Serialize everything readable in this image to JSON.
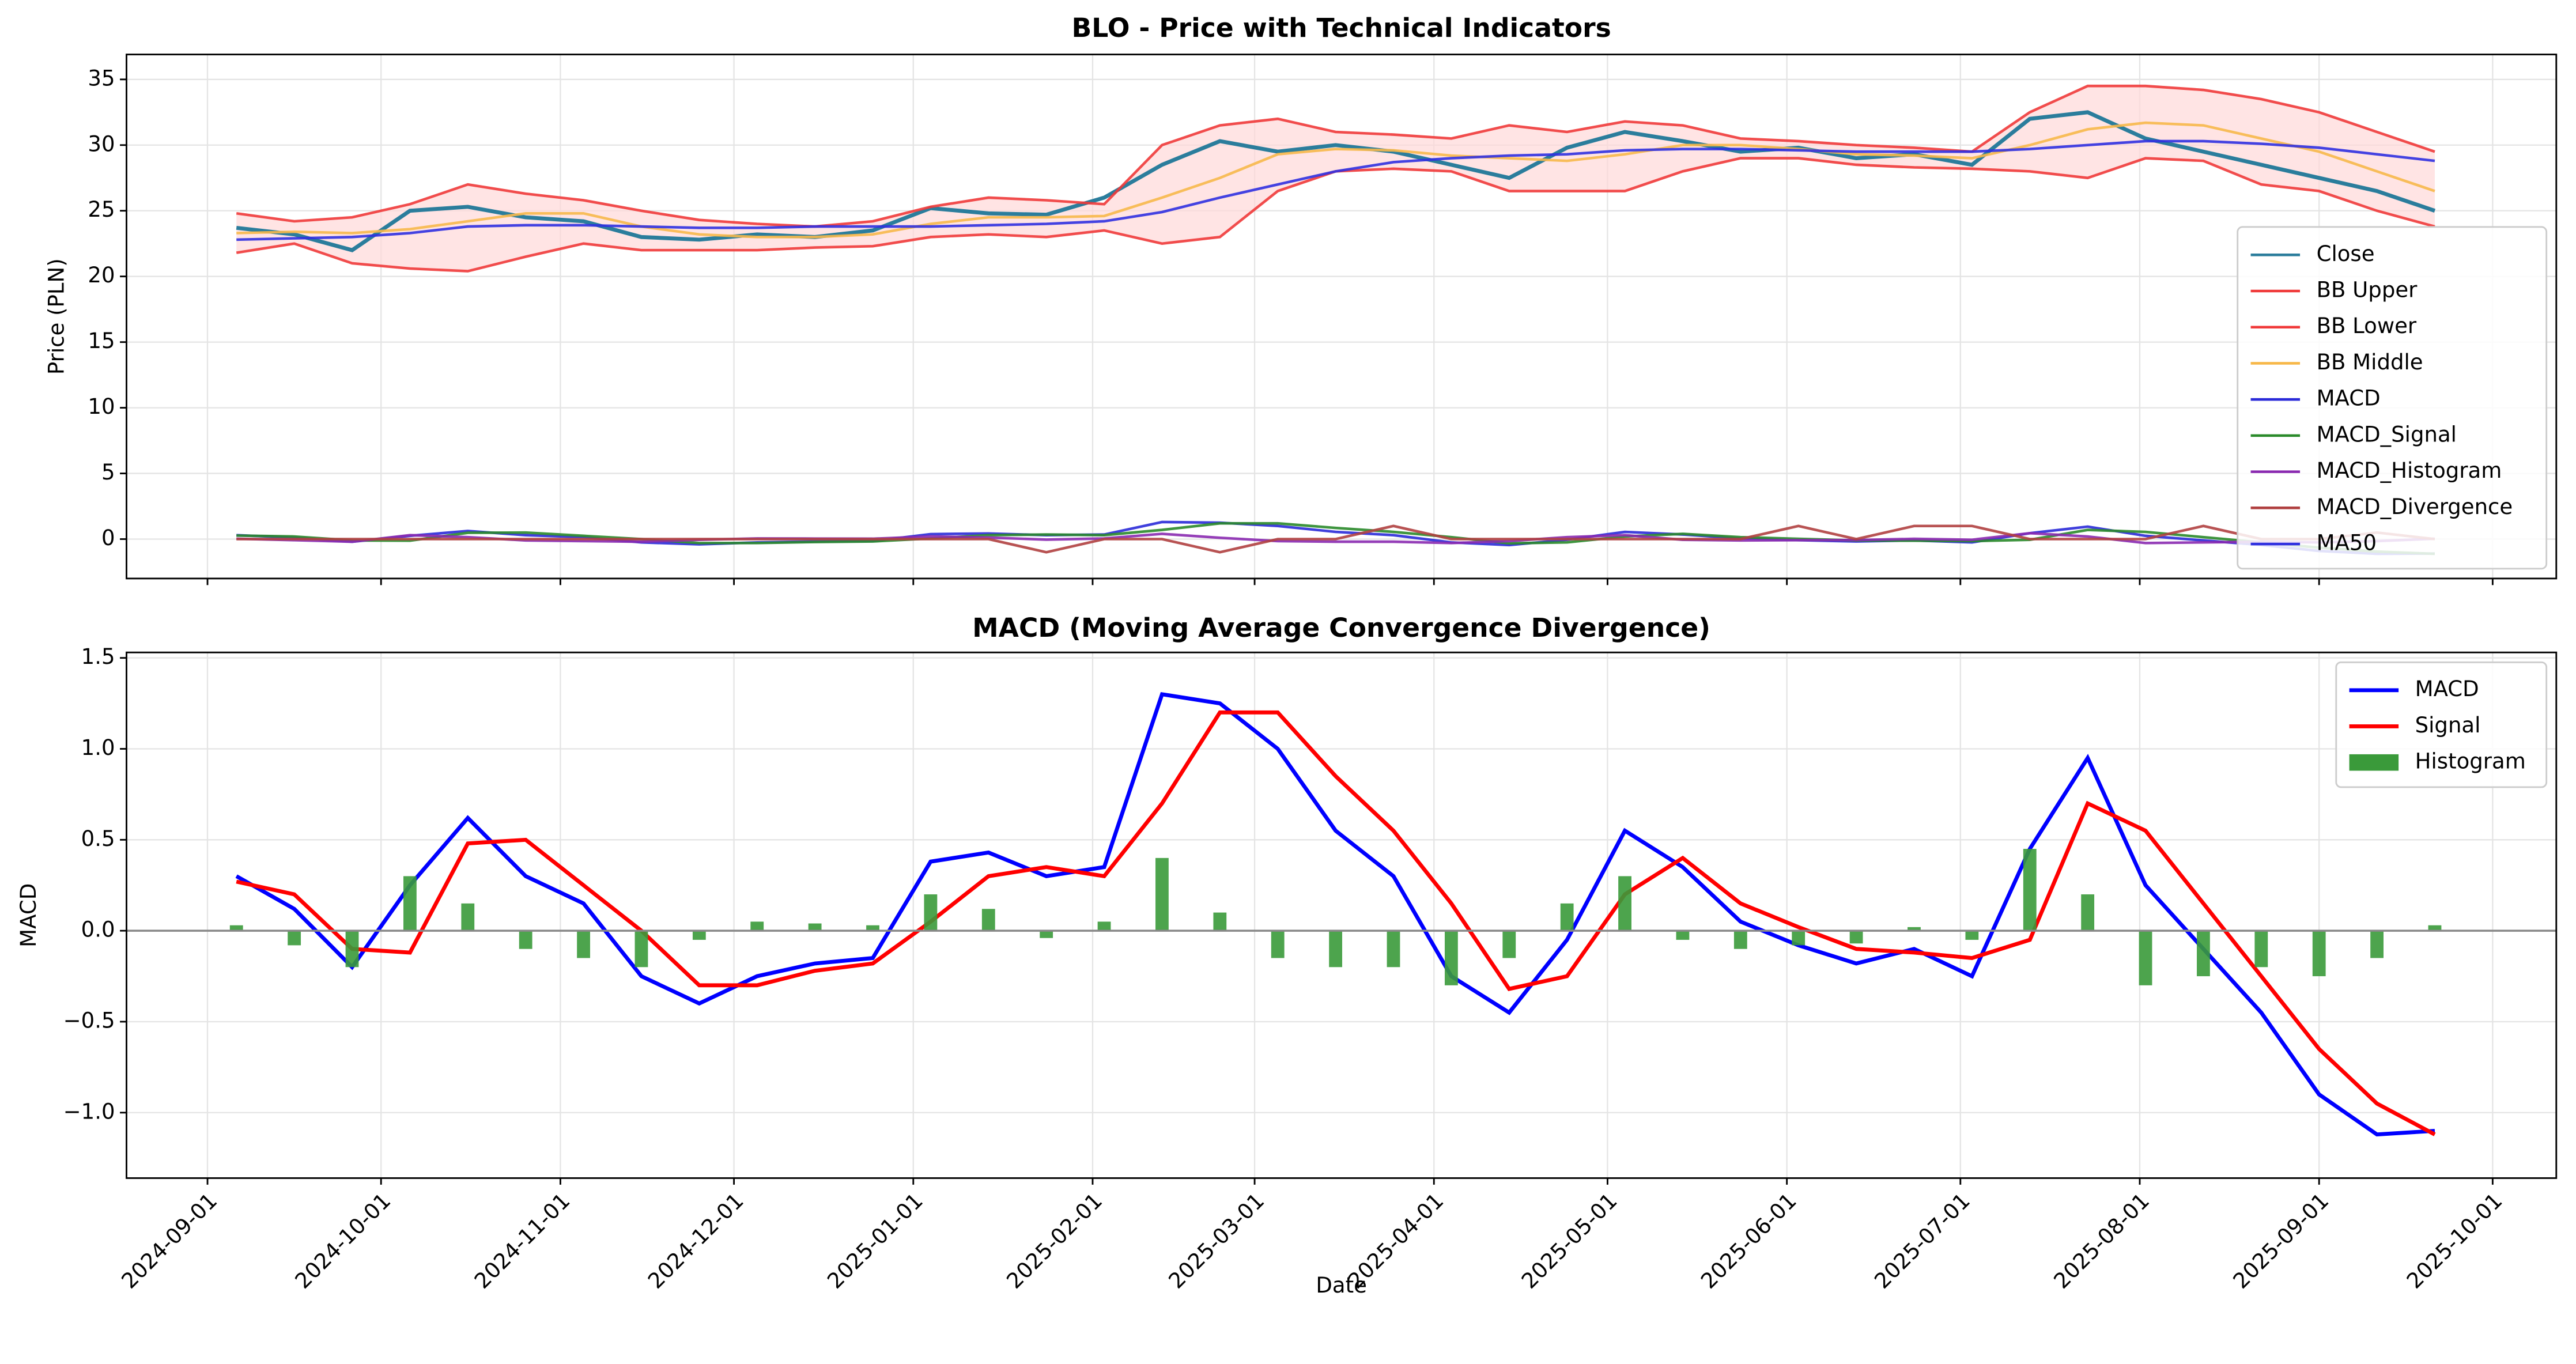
{
  "chart_data": [
    {
      "type": "line",
      "title": "BLO - Price with Technical Indicators",
      "y_label": "Price (PLN)",
      "x": [
        "2024-09-06",
        "2024-09-16",
        "2024-09-26",
        "2024-10-06",
        "2024-10-16",
        "2024-10-26",
        "2024-11-05",
        "2024-11-15",
        "2024-11-25",
        "2024-12-05",
        "2024-12-15",
        "2024-12-25",
        "2025-01-04",
        "2025-01-14",
        "2025-01-24",
        "2025-02-03",
        "2025-02-13",
        "2025-02-23",
        "2025-03-05",
        "2025-03-15",
        "2025-03-25",
        "2025-04-04",
        "2025-04-14",
        "2025-04-24",
        "2025-05-04",
        "2025-05-14",
        "2025-05-24",
        "2025-06-03",
        "2025-06-13",
        "2025-06-23",
        "2025-07-03",
        "2025-07-13",
        "2025-07-23",
        "2025-08-02",
        "2025-08-12",
        "2025-08-22",
        "2025-09-01",
        "2025-09-11",
        "2025-09-21"
      ],
      "series": [
        {
          "name": "Close",
          "color": "#2b7d9c",
          "values": [
            23.7,
            23.2,
            22.0,
            25.0,
            25.3,
            24.5,
            24.2,
            23.0,
            22.8,
            23.2,
            23.0,
            23.5,
            25.2,
            24.8,
            24.7,
            26.0,
            28.5,
            30.3,
            29.5,
            30.0,
            29.5,
            28.5,
            27.5,
            29.8,
            31.0,
            30.3,
            29.5,
            29.8,
            29.0,
            29.3,
            28.5,
            32.0,
            32.5,
            30.5,
            29.5,
            28.5,
            27.5,
            26.5,
            25.0
          ]
        },
        {
          "name": "BB Upper",
          "color": "#f03a3a",
          "values": [
            24.8,
            24.2,
            24.5,
            25.5,
            27.0,
            26.3,
            25.8,
            25.0,
            24.3,
            24.0,
            23.8,
            24.2,
            25.3,
            26.0,
            25.8,
            25.5,
            30.0,
            31.5,
            32.0,
            31.0,
            30.8,
            30.5,
            31.5,
            31.0,
            31.8,
            31.5,
            30.5,
            30.3,
            30.0,
            29.8,
            29.5,
            32.5,
            34.5,
            34.5,
            34.2,
            33.5,
            32.5,
            31.0,
            29.5
          ]
        },
        {
          "name": "BB Lower",
          "color": "#f03a3a",
          "values": [
            21.8,
            22.5,
            21.0,
            20.6,
            20.4,
            21.5,
            22.5,
            22.0,
            22.0,
            22.0,
            22.2,
            22.3,
            23.0,
            23.2,
            23.0,
            23.5,
            22.5,
            23.0,
            26.5,
            28.0,
            28.2,
            28.0,
            26.5,
            26.5,
            26.5,
            28.0,
            29.0,
            29.0,
            28.5,
            28.3,
            28.2,
            28.0,
            27.5,
            29.0,
            28.8,
            27.0,
            26.5,
            25.0,
            23.8
          ]
        },
        {
          "name": "BB Middle",
          "color": "#f7b84a",
          "values": [
            23.3,
            23.4,
            23.3,
            23.6,
            24.2,
            24.8,
            24.8,
            23.8,
            23.2,
            23.0,
            23.0,
            23.2,
            24.0,
            24.5,
            24.5,
            24.6,
            26.0,
            27.5,
            29.3,
            29.7,
            29.6,
            29.2,
            29.0,
            28.8,
            29.3,
            30.0,
            30.0,
            29.7,
            29.3,
            29.2,
            29.0,
            30.0,
            31.2,
            31.7,
            31.5,
            30.5,
            29.5,
            28.0,
            26.5
          ]
        },
        {
          "name": "MACD",
          "color": "#2a2ad8",
          "values": [
            0.3,
            0.12,
            -0.2,
            0.25,
            0.62,
            0.3,
            0.15,
            -0.25,
            -0.4,
            -0.25,
            -0.18,
            -0.15,
            0.38,
            0.43,
            0.3,
            0.35,
            1.3,
            1.25,
            1.0,
            0.55,
            0.3,
            -0.25,
            -0.45,
            -0.05,
            0.55,
            0.35,
            0.05,
            -0.08,
            -0.18,
            -0.1,
            -0.25,
            0.45,
            0.95,
            0.25,
            -0.1,
            -0.45,
            -0.9,
            -1.12,
            -1.1
          ]
        },
        {
          "name": "MACD_Signal",
          "color": "#2a8a2a",
          "values": [
            0.27,
            0.2,
            -0.1,
            -0.12,
            0.48,
            0.5,
            0.25,
            0.0,
            -0.3,
            -0.3,
            -0.22,
            -0.18,
            0.05,
            0.3,
            0.35,
            0.3,
            0.7,
            1.2,
            1.2,
            0.85,
            0.55,
            0.15,
            -0.32,
            -0.25,
            0.2,
            0.4,
            0.15,
            0.02,
            -0.1,
            -0.12,
            -0.15,
            -0.05,
            0.7,
            0.55,
            0.15,
            -0.25,
            -0.65,
            -0.95,
            -1.12
          ]
        },
        {
          "name": "MACD_Histogram",
          "color": "#8a2ab0",
          "values": [
            0.03,
            -0.08,
            -0.2,
            0.3,
            0.15,
            -0.1,
            -0.15,
            -0.2,
            -0.05,
            0.05,
            0.04,
            0.03,
            0.2,
            0.12,
            -0.04,
            0.05,
            0.4,
            0.1,
            -0.15,
            -0.2,
            -0.2,
            -0.3,
            -0.15,
            0.15,
            0.3,
            -0.05,
            -0.1,
            -0.08,
            -0.07,
            0.02,
            -0.05,
            0.45,
            0.2,
            -0.3,
            -0.25,
            -0.2,
            -0.25,
            -0.15,
            0.03
          ]
        },
        {
          "name": "MACD_Divergence",
          "color": "#b04040",
          "values": [
            0,
            0,
            0,
            0,
            0,
            0,
            0,
            0,
            0,
            0,
            0,
            0,
            0,
            0,
            -1,
            0,
            0,
            -1,
            0,
            0,
            1,
            0,
            0,
            0,
            0,
            0,
            0,
            1,
            0,
            1,
            1,
            0,
            0,
            0,
            1,
            0,
            0,
            0.5,
            0
          ]
        },
        {
          "name": "MA50",
          "color": "#3030e0",
          "values": [
            22.8,
            22.9,
            23.0,
            23.3,
            23.8,
            23.9,
            23.9,
            23.8,
            23.7,
            23.7,
            23.8,
            23.8,
            23.8,
            23.9,
            24.0,
            24.2,
            24.9,
            26.0,
            27.0,
            28.0,
            28.7,
            29.0,
            29.2,
            29.3,
            29.6,
            29.7,
            29.7,
            29.6,
            29.5,
            29.5,
            29.5,
            29.7,
            30.0,
            30.3,
            30.3,
            30.1,
            29.8,
            29.3,
            28.8
          ]
        }
      ],
      "band_color": "#ffd9d9",
      "xlim": [
        "2024-08-18",
        "2025-10-12"
      ],
      "xticks": [
        "2024-09-01",
        "2024-10-01",
        "2024-11-01",
        "2024-12-01",
        "2025-01-01",
        "2025-02-01",
        "2025-03-01",
        "2025-04-01",
        "2025-05-01",
        "2025-06-01",
        "2025-07-01",
        "2025-08-01",
        "2025-09-01",
        "2025-10-01"
      ],
      "ylim": [
        -3,
        36.9
      ],
      "yticks": [
        0,
        5,
        10,
        15,
        20,
        25,
        30,
        35
      ],
      "grid": true,
      "legend": "lower right"
    },
    {
      "type": "line",
      "title": "MACD (Moving Average Convergence Divergence)",
      "x_label": "Date",
      "y_label": "MACD",
      "x": [
        "2024-09-06",
        "2024-09-16",
        "2024-09-26",
        "2024-10-06",
        "2024-10-16",
        "2024-10-26",
        "2024-11-05",
        "2024-11-15",
        "2024-11-25",
        "2024-12-05",
        "2024-12-15",
        "2024-12-25",
        "2025-01-04",
        "2025-01-14",
        "2025-01-24",
        "2025-02-03",
        "2025-02-13",
        "2025-02-23",
        "2025-03-05",
        "2025-03-15",
        "2025-03-25",
        "2025-04-04",
        "2025-04-14",
        "2025-04-24",
        "2025-05-04",
        "2025-05-14",
        "2025-05-24",
        "2025-06-03",
        "2025-06-13",
        "2025-06-23",
        "2025-07-03",
        "2025-07-13",
        "2025-07-23",
        "2025-08-02",
        "2025-08-12",
        "2025-08-22",
        "2025-09-01",
        "2025-09-11",
        "2025-09-21"
      ],
      "series": [
        {
          "name": "MACD",
          "color": "#0000ff",
          "values": [
            0.3,
            0.12,
            -0.2,
            0.25,
            0.62,
            0.3,
            0.15,
            -0.25,
            -0.4,
            -0.25,
            -0.18,
            -0.15,
            0.38,
            0.43,
            0.3,
            0.35,
            1.3,
            1.25,
            1.0,
            0.55,
            0.3,
            -0.25,
            -0.45,
            -0.05,
            0.55,
            0.35,
            0.05,
            -0.08,
            -0.18,
            -0.1,
            -0.25,
            0.45,
            0.95,
            0.25,
            -0.1,
            -0.45,
            -0.9,
            -1.12,
            -1.1
          ]
        },
        {
          "name": "Signal",
          "color": "#ff0000",
          "values": [
            0.27,
            0.2,
            -0.1,
            -0.12,
            0.48,
            0.5,
            0.25,
            0.0,
            -0.3,
            -0.3,
            -0.22,
            -0.18,
            0.05,
            0.3,
            0.35,
            0.3,
            0.7,
            1.2,
            1.2,
            0.85,
            0.55,
            0.15,
            -0.32,
            -0.25,
            0.2,
            0.4,
            0.15,
            0.02,
            -0.1,
            -0.12,
            -0.15,
            -0.05,
            0.7,
            0.55,
            0.15,
            -0.25,
            -0.65,
            -0.95,
            -1.12
          ]
        },
        {
          "name": "Histogram",
          "color": "#3a9a3a",
          "type": "bar",
          "values": [
            0.03,
            -0.08,
            -0.2,
            0.3,
            0.15,
            -0.1,
            -0.15,
            -0.2,
            -0.05,
            0.05,
            0.04,
            0.03,
            0.2,
            0.12,
            -0.04,
            0.05,
            0.4,
            0.1,
            -0.15,
            -0.2,
            -0.2,
            -0.3,
            -0.15,
            0.15,
            0.3,
            -0.05,
            -0.1,
            -0.08,
            -0.07,
            0.02,
            -0.05,
            0.45,
            0.2,
            -0.3,
            -0.25,
            -0.2,
            -0.25,
            -0.15,
            0.03
          ]
        }
      ],
      "xlim": [
        "2024-08-18",
        "2025-10-12"
      ],
      "xticks": [
        "2024-09-01",
        "2024-10-01",
        "2024-11-01",
        "2024-12-01",
        "2025-01-01",
        "2025-02-01",
        "2025-03-01",
        "2025-04-01",
        "2025-05-01",
        "2025-06-01",
        "2025-07-01",
        "2025-08-01",
        "2025-09-01",
        "2025-10-01"
      ],
      "ylim": [
        -1.36,
        1.53
      ],
      "yticks": [
        {
          "value": -1,
          "label": "−1.0"
        },
        {
          "value": -0.5,
          "label": "−0.5"
        },
        {
          "value": 0,
          "label": "0.0"
        },
        0.5,
        {
          "value": 1,
          "label": "1.0"
        },
        1.5
      ],
      "grid": true,
      "legend": "upper right"
    }
  ]
}
